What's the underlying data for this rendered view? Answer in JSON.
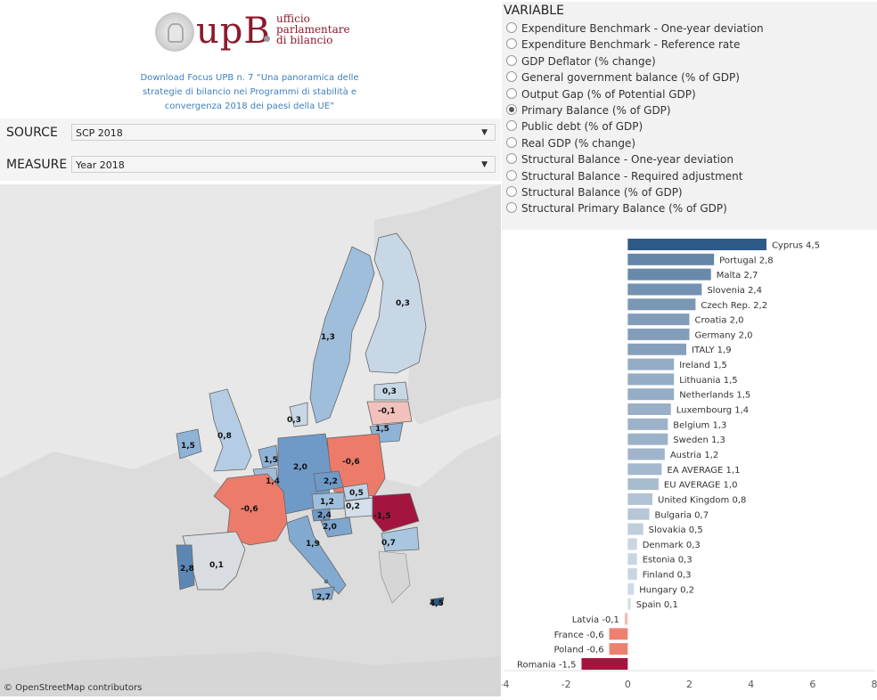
{
  "header": {
    "logo_text": "upB",
    "logo_sub": [
      "ufficio",
      "parlamentare",
      "di bilancio"
    ],
    "download_text": "Download Focus UPB n. 7 “Una panoramica delle strategie di bilancio nei Programmi di stabilità e convergenza 2018 dei paesi della UE”"
  },
  "filters": {
    "source_label": "SOURCE",
    "source_value": "SCP 2018",
    "measure_label": "MEASURE",
    "measure_value": "Year 2018"
  },
  "variable": {
    "title": "VARIABLE",
    "options": [
      {
        "label": "Expenditure Benchmark - One-year deviation",
        "selected": false
      },
      {
        "label": "Expenditure Benchmark - Reference rate",
        "selected": false
      },
      {
        "label": "GDP Deflator (% change)",
        "selected": false
      },
      {
        "label": "General government balance (% of GDP)",
        "selected": false
      },
      {
        "label": "Output Gap (% of Potential GDP)",
        "selected": false
      },
      {
        "label": "Primary Balance (% of GDP)",
        "selected": true
      },
      {
        "label": "Public debt (% of GDP)",
        "selected": false
      },
      {
        "label": "Real GDP (% change)",
        "selected": false
      },
      {
        "label": "Structural Balance - One-year deviation",
        "selected": false
      },
      {
        "label": "Structural Balance - Required adjustment",
        "selected": false
      },
      {
        "label": "Structural Balance (% of GDP)",
        "selected": false
      },
      {
        "label": "Structural Primary Balance (% of GDP)",
        "selected": false
      }
    ]
  },
  "map": {
    "credit": "© OpenStreetMap contributors",
    "labels": [
      "0,3",
      "1,3",
      "0,3",
      "-0,1",
      "0,3",
      "1,5",
      "1,5",
      "0,8",
      "1,5",
      "2,0",
      "-0,6",
      "1,4",
      "2,2",
      "0,5",
      "-0,6",
      "1,2",
      "0,2",
      "2,4",
      "-1,5",
      "2,0",
      "1,9",
      "0,7",
      "2,8",
      "0,1",
      "2,7",
      "4,5"
    ]
  },
  "chart_data": {
    "type": "bar",
    "orientation": "horizontal",
    "categories": [
      "Cyprus",
      "Portugal",
      "Malta",
      "Slovenia",
      "Czech Rep.",
      "Croatia",
      "Germany",
      "ITALY",
      "Ireland",
      "Lithuania",
      "Netherlands",
      "Luxembourg",
      "Belgium",
      "Sweden",
      "Austria",
      "EA AVERAGE",
      "EU AVERAGE",
      "United Kingdom",
      "Bulgaria",
      "Slovakia",
      "Denmark",
      "Estonia",
      "Finland",
      "Hungary",
      "Spain",
      "Latvia",
      "France",
      "Poland",
      "Romania"
    ],
    "labels": [
      "Cyprus 4,5",
      "Portugal 2,8",
      "Malta 2,7",
      "Slovenia 2,4",
      "Czech Rep. 2,2",
      "Croatia 2,0",
      "Germany 2,0",
      "ITALY 1,9",
      "Ireland 1,5",
      "Lithuania 1,5",
      "Netherlands 1,5",
      "Luxembourg 1,4",
      "Belgium 1,3",
      "Sweden 1,3",
      "Austria 1,2",
      "EA AVERAGE 1,1",
      "EU AVERAGE 1,0",
      "United Kingdom 0,8",
      "Bulgaria 0,7",
      "Slovakia 0,5",
      "Denmark 0,3",
      "Estonia 0,3",
      "Finland 0,3",
      "Hungary 0,2",
      "Spain 0,1",
      "Latvia -0,1",
      "France -0,6",
      "Poland -0,6",
      "Romania -1,5"
    ],
    "values": [
      4.5,
      2.8,
      2.7,
      2.4,
      2.2,
      2.0,
      2.0,
      1.9,
      1.5,
      1.5,
      1.5,
      1.4,
      1.3,
      1.3,
      1.2,
      1.1,
      1.0,
      0.8,
      0.7,
      0.5,
      0.3,
      0.3,
      0.3,
      0.2,
      0.1,
      -0.1,
      -0.6,
      -0.6,
      -1.5
    ],
    "xlim": [
      -4,
      8
    ],
    "xticks": [
      -4,
      -2,
      0,
      2,
      4,
      6,
      8
    ],
    "grid": false
  },
  "colors": {
    "positive_max": "#2e5a88",
    "positive_min": "#dde6ee",
    "negative_min": "#f4c9c3",
    "negative_mid": "#ec6e5e",
    "negative_max": "#a3153f"
  }
}
